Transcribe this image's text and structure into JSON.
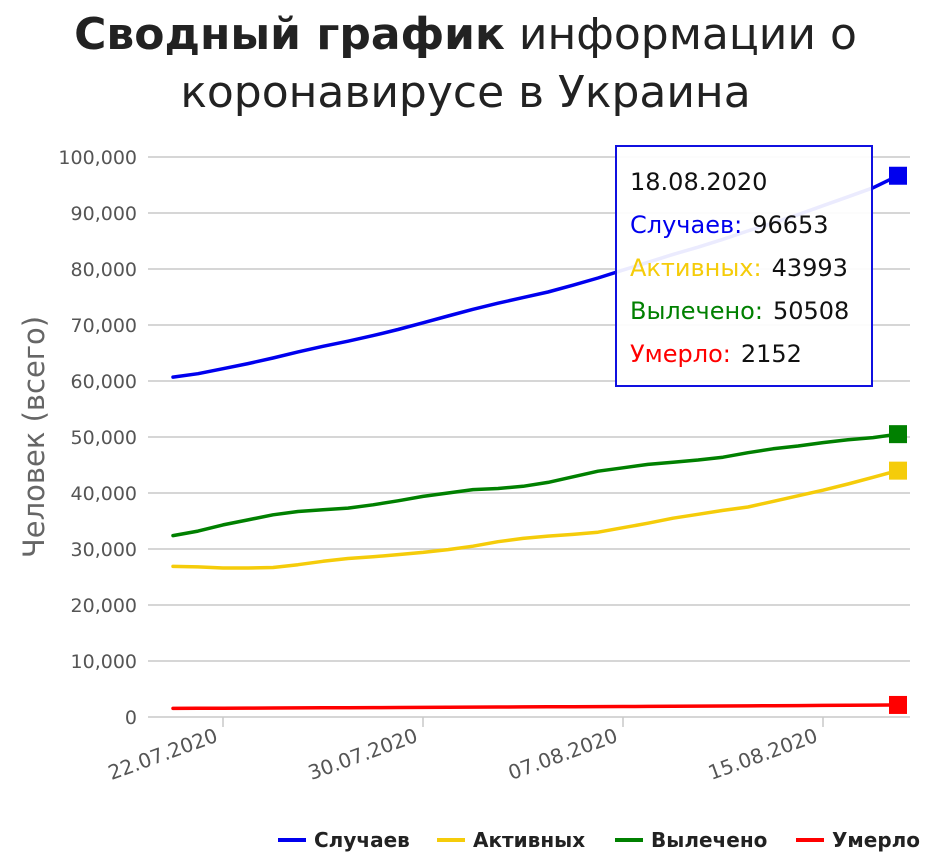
{
  "title": {
    "bold": "Сводный график",
    "rest_line1": "информации о",
    "line2": "коронавирусе в Украина"
  },
  "chart_data": {
    "type": "line",
    "ylabel": "Человек (всего)",
    "ylim": [
      0,
      100000
    ],
    "yticks": [
      "0",
      "10,000",
      "20,000",
      "30,000",
      "40,000",
      "50,000",
      "60,000",
      "70,000",
      "80,000",
      "90,000",
      "100,000"
    ],
    "xtick_labels": [
      "22.07.2020",
      "30.07.2020",
      "07.08.2020",
      "15.08.2020"
    ],
    "xtick_dates": [
      "2020-07-22",
      "2020-07-30",
      "2020-08-07",
      "2020-08-15"
    ],
    "x": [
      "2020-07-20",
      "2020-07-21",
      "2020-07-22",
      "2020-07-23",
      "2020-07-24",
      "2020-07-25",
      "2020-07-26",
      "2020-07-27",
      "2020-07-28",
      "2020-07-29",
      "2020-07-30",
      "2020-07-31",
      "2020-08-01",
      "2020-08-02",
      "2020-08-03",
      "2020-08-04",
      "2020-08-05",
      "2020-08-06",
      "2020-08-07",
      "2020-08-08",
      "2020-08-09",
      "2020-08-10",
      "2020-08-11",
      "2020-08-12",
      "2020-08-13",
      "2020-08-14",
      "2020-08-15",
      "2020-08-16",
      "2020-08-17",
      "2020-08-18"
    ],
    "series": [
      {
        "name": "Случаев",
        "color": "#0000ee",
        "values": [
          60700,
          61300,
          62200,
          63100,
          64100,
          65200,
          66200,
          67100,
          68100,
          69200,
          70400,
          71600,
          72800,
          73900,
          74900,
          75900,
          77100,
          78400,
          79800,
          81200,
          82600,
          83900,
          85300,
          86800,
          88200,
          89700,
          91300,
          92900,
          94500,
          96653
        ]
      },
      {
        "name": "Активных",
        "color": "#f5cc0a",
        "values": [
          26900,
          26800,
          26600,
          26600,
          26700,
          27200,
          27800,
          28300,
          28600,
          29000,
          29400,
          29900,
          30500,
          31300,
          31900,
          32300,
          32600,
          33000,
          33800,
          34600,
          35500,
          36200,
          36900,
          37500,
          38500,
          39500,
          40500,
          41600,
          42800,
          43993
        ]
      },
      {
        "name": "Вылечено",
        "color": "#008000",
        "values": [
          32400,
          33200,
          34300,
          35200,
          36100,
          36700,
          37000,
          37300,
          37900,
          38600,
          39400,
          40000,
          40600,
          40800,
          41200,
          41900,
          42900,
          43900,
          44500,
          45100,
          45500,
          45900,
          46400,
          47200,
          47900,
          48400,
          49000,
          49500,
          49900,
          50508
        ]
      },
      {
        "name": "Умерло",
        "color": "#ff0000",
        "values": [
          1530,
          1550,
          1570,
          1590,
          1610,
          1630,
          1640,
          1660,
          1680,
          1700,
          1720,
          1740,
          1760,
          1780,
          1800,
          1820,
          1840,
          1860,
          1880,
          1900,
          1920,
          1940,
          1960,
          1980,
          2010,
          2040,
          2070,
          2100,
          2130,
          2152
        ]
      }
    ],
    "legend_position": "bottom-right",
    "grid": true
  },
  "tooltip": {
    "date": "18.08.2020",
    "rows": [
      {
        "label": "Случаев:",
        "value": "96653",
        "color": "#0000ee"
      },
      {
        "label": "Активных:",
        "value": "43993",
        "color": "#f5cc0a"
      },
      {
        "label": "Вылечено:",
        "value": "50508",
        "color": "#008000"
      },
      {
        "label": "Умерло:",
        "value": "2152",
        "color": "#ff0000"
      }
    ]
  }
}
